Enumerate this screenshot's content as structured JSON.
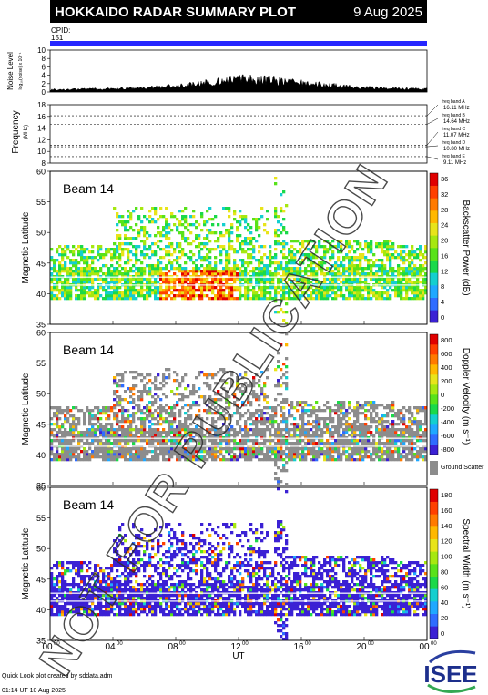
{
  "header": {
    "title": "HOKKAIDO RADAR SUMMARY PLOT",
    "date": "9 Aug 2025",
    "cpid_label": "CPID:",
    "cpid_value": "151",
    "bar_color": "#2626ff"
  },
  "noise_panel": {
    "ylabel": "Noise Level",
    "ylabel_sub": "log₁₀(noise) x 10⁻¹",
    "ticks": [
      "10",
      "8",
      "6",
      "4",
      "2",
      "0"
    ]
  },
  "freq_panel": {
    "ylabel": "Frequency",
    "ylabel_sub": "(MHz)",
    "ticks": [
      "18",
      "16",
      "14",
      "12",
      "10",
      "8"
    ],
    "bands": [
      {
        "name": "freq band A",
        "value": "16.11 MHz",
        "mhz": 16.11
      },
      {
        "name": "freq band B",
        "value": "14.64 MHz",
        "mhz": 14.64
      },
      {
        "name": "freq band C",
        "value": "11.07 MHz",
        "mhz": 11.07
      },
      {
        "name": "freq band D",
        "value": "10.80 MHz",
        "mhz": 10.8
      },
      {
        "name": "freq band E",
        "value": "9.11 MHz",
        "mhz": 9.11
      }
    ]
  },
  "panels": [
    {
      "beam": "Beam 14",
      "ylabel": "Magnetic Latitude",
      "yticks": [
        "60",
        "55",
        "50",
        "45",
        "40",
        "35"
      ],
      "colorbar_label": "Backscatter Power (dB)",
      "colorbar_ticks": [
        "36",
        "32",
        "28",
        "24",
        "20",
        "16",
        "12",
        "8",
        "4",
        "0"
      ],
      "colors": [
        "#3b21d4",
        "#2f6cff",
        "#1fa8ff",
        "#14cfcf",
        "#1ad94a",
        "#58e21a",
        "#a6e810",
        "#e8e41a",
        "#ffb800",
        "#ff7a00",
        "#ff4000",
        "#e00000"
      ]
    },
    {
      "beam": "Beam 14",
      "ylabel": "Magnetic Latitude",
      "yticks": [
        "60",
        "55",
        "50",
        "45",
        "40",
        "35"
      ],
      "colorbar_label": "Doppler Velocity (m s⁻¹)",
      "colorbar_ticks": [
        "800",
        "600",
        "400",
        "200",
        "0",
        "-200",
        "-400",
        "-600",
        "-800"
      ],
      "colors": [
        "#3b21d4",
        "#2f6cff",
        "#1fa8ff",
        "#14cfcf",
        "#1ad94a",
        "#58e21a",
        "#a6e810",
        "#e8e41a",
        "#ffb800",
        "#ff7a00",
        "#ff4000",
        "#e00000"
      ],
      "ground_scatter_label": "Ground Scatter",
      "ground_scatter_color": "#8c8c8c"
    },
    {
      "beam": "Beam 14",
      "ylabel": "Magnetic Latitude",
      "yticks": [
        "60",
        "55",
        "50",
        "45",
        "40",
        "35"
      ],
      "colorbar_label": "Spectral Width (m s⁻¹)",
      "colorbar_ticks": [
        "180",
        "160",
        "140",
        "120",
        "100",
        "80",
        "60",
        "40",
        "20",
        "0"
      ],
      "colors": [
        "#3b21d4",
        "#2f6cff",
        "#1fa8ff",
        "#14cfcf",
        "#1ad94a",
        "#58e21a",
        "#a6e810",
        "#e8e41a",
        "#ffb800",
        "#ff7a00",
        "#ff4000",
        "#e00000"
      ]
    }
  ],
  "xaxis": {
    "label": "UT",
    "ticks": [
      "00",
      "04",
      "08",
      "12",
      "16",
      "20",
      "00"
    ],
    "tick_sup": "00"
  },
  "watermark": "NOT FOR PUBLICATION",
  "footer": {
    "line1": "Quick Look plot created by sddata.adm",
    "line2": "01:14 UT 10 Aug 2025",
    "logo": "ISEE"
  },
  "chart_data": [
    {
      "type": "line",
      "title": "Noise Level",
      "x": [
        0,
        2,
        4,
        6,
        8,
        10,
        12,
        14,
        16,
        18,
        20,
        22,
        24
      ],
      "series": [
        {
          "values": [
            0.5,
            0.6,
            0.7,
            0.9,
            1.3,
            2.0,
            2.8,
            2.6,
            1.9,
            1.4,
            1.0,
            0.8,
            0.6
          ]
        }
      ],
      "ylim": [
        0,
        10
      ],
      "xlabel": "UT"
    },
    {
      "type": "line",
      "title": "Frequency",
      "ylim": [
        8,
        18
      ],
      "bands_mhz": [
        16.11,
        14.64,
        11.07,
        10.8,
        9.11
      ]
    },
    {
      "type": "heatmap",
      "title": "Backscatter Power (dB)",
      "xlim": [
        0,
        24
      ],
      "ylim": [
        35,
        60
      ],
      "zlim": [
        0,
        36
      ],
      "xlabel": "UT",
      "ylabel": "Magnetic Latitude"
    },
    {
      "type": "heatmap",
      "title": "Doppler Velocity (m s⁻¹)",
      "xlim": [
        0,
        24
      ],
      "ylim": [
        35,
        60
      ],
      "zlim": [
        -800,
        800
      ],
      "xlabel": "UT",
      "ylabel": "Magnetic Latitude"
    },
    {
      "type": "heatmap",
      "title": "Spectral Width (m s⁻¹)",
      "xlim": [
        0,
        24
      ],
      "ylim": [
        35,
        60
      ],
      "zlim": [
        0,
        180
      ],
      "xlabel": "UT",
      "ylabel": "Magnetic Latitude"
    }
  ]
}
